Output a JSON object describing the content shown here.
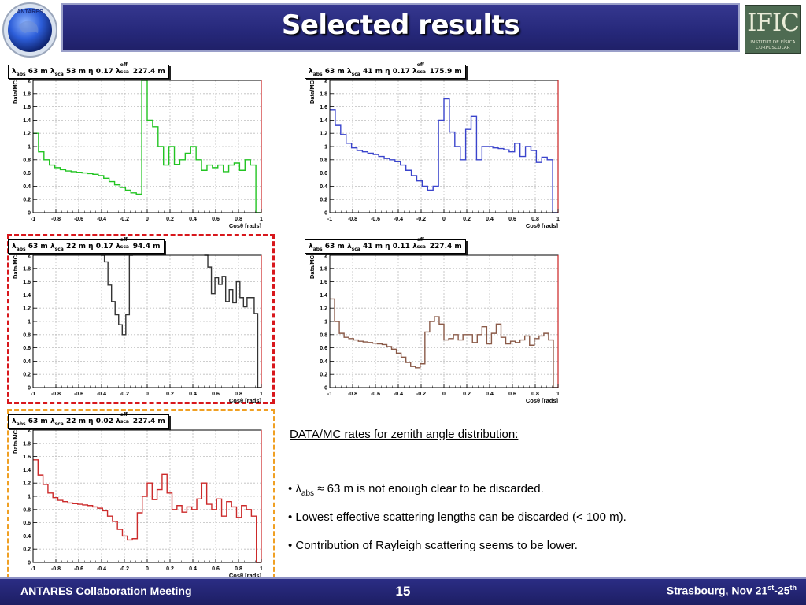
{
  "header": {
    "title": "Selected results"
  },
  "logos": {
    "antares": "ANTARES",
    "ific_main": "IFIC",
    "ific_sub1": "INSTITUT DE FÍSICA",
    "ific_sub2": "CORPUSCULAR"
  },
  "footer": {
    "left": "ANTARES Collaboration Meeting",
    "page": "15",
    "right_prefix": "Strasbourg, Nov 21",
    "right_sup1": "st",
    "right_mid": "-25",
    "right_sup2": "th"
  },
  "text_panel": {
    "heading": "DATA/MC rates for zenith angle distribution:",
    "bullet1_prefix": "• λ",
    "bullet1_sub": "abs",
    "bullet1_rest": " ≈ 63 m is not enough clear to be discarded.",
    "bullet2": "• Lowest effective scattering lengths can be discarded (< 100 m).",
    "bullet3": "• Contribution of Rayleigh scattering seems to be lower."
  },
  "chart_data": [
    {
      "type": "line",
      "step": true,
      "color": "#22c422",
      "title": {
        "abs": "63 m",
        "sca": "53 m",
        "eta": "0.17",
        "eff": "227.4 m"
      },
      "xlabel": "Cosθ [rads]",
      "ylabel": "Data/MC",
      "xlim": [
        -1,
        1
      ],
      "ylim": [
        0,
        2
      ],
      "grid": true,
      "xticks": [
        "-1",
        "-0.8",
        "-0.6",
        "-0.4",
        "-0.2",
        "0",
        "0.2",
        "0.4",
        "0.6",
        "0.8",
        "1"
      ],
      "yticks": [
        "0",
        "0.2",
        "0.4",
        "0.6",
        "0.8",
        "1",
        "1.2",
        "1.4",
        "1.6",
        "1.8",
        "2"
      ],
      "values": [
        1.2,
        0.92,
        0.8,
        0.72,
        0.68,
        0.65,
        0.63,
        0.62,
        0.61,
        0.6,
        0.59,
        0.58,
        0.56,
        0.52,
        0.47,
        0.42,
        0.38,
        0.34,
        0.3,
        0.28,
        2.0,
        1.4,
        1.3,
        1.0,
        0.72,
        1.0,
        0.73,
        0.8,
        0.9,
        1.0,
        0.8,
        0.64,
        0.72,
        0.68,
        0.72,
        0.62,
        0.72,
        0.75,
        0.64,
        0.8,
        0.72,
        0.0
      ]
    },
    {
      "type": "line",
      "step": true,
      "color": "#3a44cc",
      "title": {
        "abs": "63 m",
        "sca": "41 m",
        "eta": "0.17",
        "eff": "175.9 m"
      },
      "xlabel": "Cosθ [rads]",
      "ylabel": "Data/MC",
      "xlim": [
        -1,
        1
      ],
      "ylim": [
        0,
        2
      ],
      "grid": true,
      "xticks": [
        "-1",
        "-0.8",
        "-0.6",
        "-0.4",
        "-0.2",
        "0",
        "0.2",
        "0.4",
        "0.6",
        "0.8",
        "1"
      ],
      "yticks": [
        "0",
        "0.2",
        "0.4",
        "0.6",
        "0.8",
        "1",
        "1.2",
        "1.4",
        "1.6",
        "1.8",
        "2"
      ],
      "values": [
        1.55,
        1.32,
        1.18,
        1.05,
        0.98,
        0.94,
        0.92,
        0.9,
        0.88,
        0.85,
        0.82,
        0.8,
        0.77,
        0.72,
        0.64,
        0.56,
        0.48,
        0.4,
        0.34,
        0.4,
        1.4,
        1.72,
        1.22,
        1.0,
        0.8,
        1.26,
        1.46,
        0.8,
        1.0,
        1.0,
        0.98,
        0.97,
        0.95,
        0.92,
        1.05,
        0.85,
        1.0,
        0.94,
        0.76,
        0.84,
        0.8,
        0.0
      ]
    },
    {
      "type": "line",
      "step": true,
      "color": "#333333",
      "title": {
        "abs": "63 m",
        "sca": "22 m",
        "eta": "0.17",
        "eff": "94.4 m"
      },
      "xlabel": "Cosθ [rads]",
      "ylabel": "Data/MC",
      "xlim": [
        -1,
        1
      ],
      "ylim": [
        0,
        2
      ],
      "grid": true,
      "xticks": [
        "-1",
        "-0.8",
        "-0.6",
        "-0.4",
        "-0.2",
        "0",
        "0.2",
        "0.4",
        "0.6",
        "0.8",
        "1"
      ],
      "yticks": [
        "0",
        "0.2",
        "0.4",
        "0.6",
        "0.8",
        "1",
        "1.2",
        "1.4",
        "1.6",
        "1.8",
        "2"
      ],
      "values": [
        null,
        null,
        null,
        null,
        null,
        null,
        null,
        null,
        null,
        null,
        null,
        null,
        null,
        null,
        null,
        null,
        null,
        null,
        null,
        2.0,
        1.9,
        1.55,
        1.3,
        1.1,
        0.95,
        0.8,
        1.1,
        2.0,
        null,
        null,
        null,
        null,
        null,
        null,
        null,
        null,
        null,
        null,
        null,
        null,
        null,
        null,
        null,
        null,
        null,
        null,
        null,
        null,
        2.0,
        1.82,
        1.42,
        1.66,
        1.56,
        1.68,
        1.3,
        1.48,
        1.28,
        1.6,
        1.36,
        1.22,
        1.36,
        1.36,
        1.12,
        0.0
      ]
    },
    {
      "type": "line",
      "step": true,
      "color": "#8a5a48",
      "title": {
        "abs": "63 m",
        "sca": "41 m",
        "eta": "0.11",
        "eff": "227.4 m"
      },
      "xlabel": "Cosθ [rads]",
      "ylabel": "Data/MC",
      "xlim": [
        -1,
        1
      ],
      "ylim": [
        0,
        2
      ],
      "grid": true,
      "xticks": [
        "-1",
        "-0.8",
        "-0.6",
        "-0.4",
        "-0.2",
        "0",
        "0.2",
        "0.4",
        "0.6",
        "0.8",
        "1"
      ],
      "yticks": [
        "0",
        "0.2",
        "0.4",
        "0.6",
        "0.8",
        "1",
        "1.2",
        "1.4",
        "1.6",
        "1.8",
        "2"
      ],
      "values": [
        1.34,
        1.0,
        0.82,
        0.76,
        0.74,
        0.72,
        0.7,
        0.69,
        0.68,
        0.67,
        0.66,
        0.65,
        0.62,
        0.58,
        0.52,
        0.46,
        0.38,
        0.32,
        0.3,
        0.36,
        0.84,
        1.0,
        1.07,
        0.96,
        0.72,
        0.74,
        0.8,
        0.72,
        0.8,
        0.8,
        0.68,
        0.8,
        0.92,
        0.66,
        0.82,
        0.96,
        0.76,
        0.66,
        0.7,
        0.68,
        0.72,
        0.78,
        0.64,
        0.74,
        0.78,
        0.82,
        0.72,
        0.0
      ]
    },
    {
      "type": "line",
      "step": true,
      "color": "#cc2a2a",
      "title": {
        "abs": "63 m",
        "sca": "22 m",
        "eta": "0.02",
        "eff": "227.4 m"
      },
      "xlabel": "Cosθ [rads]",
      "ylabel": "Data/MC",
      "xlim": [
        -1,
        1
      ],
      "ylim": [
        0,
        2
      ],
      "grid": true,
      "xticks": [
        "-1",
        "-0.8",
        "-0.6",
        "-0.4",
        "-0.2",
        "0",
        "0.2",
        "0.4",
        "0.6",
        "0.8",
        "1"
      ],
      "yticks": [
        "0",
        "0.2",
        "0.4",
        "0.6",
        "0.8",
        "1",
        "1.2",
        "1.4",
        "1.6",
        "1.8",
        "2"
      ],
      "values": [
        1.55,
        1.32,
        1.18,
        1.05,
        0.98,
        0.94,
        0.92,
        0.9,
        0.89,
        0.88,
        0.87,
        0.86,
        0.84,
        0.82,
        0.78,
        0.7,
        0.62,
        0.5,
        0.4,
        0.34,
        0.36,
        0.75,
        1.0,
        1.2,
        0.95,
        1.1,
        1.33,
        1.05,
        0.8,
        0.86,
        0.76,
        0.84,
        0.8,
        0.96,
        1.2,
        0.88,
        0.8,
        0.96,
        0.7,
        0.92,
        0.84,
        0.68,
        0.86,
        0.8,
        0.7,
        0.0
      ]
    }
  ]
}
